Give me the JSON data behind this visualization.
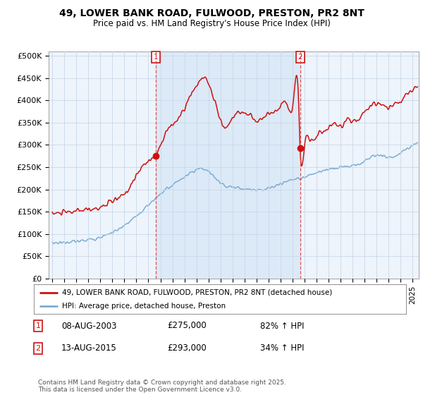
{
  "title": "49, LOWER BANK ROAD, FULWOOD, PRESTON, PR2 8NT",
  "subtitle": "Price paid vs. HM Land Registry's House Price Index (HPI)",
  "ylabel_ticks": [
    "£0",
    "£50K",
    "£100K",
    "£150K",
    "£200K",
    "£250K",
    "£300K",
    "£350K",
    "£400K",
    "£450K",
    "£500K"
  ],
  "ytick_vals": [
    0,
    50000,
    100000,
    150000,
    200000,
    250000,
    300000,
    350000,
    400000,
    450000,
    500000
  ],
  "ylim": [
    0,
    510000
  ],
  "xlim_start": 1994.7,
  "xlim_end": 2025.5,
  "red_line_color": "#cc1111",
  "blue_line_color": "#7aadd4",
  "sale1_x": 2003.6,
  "sale1_y": 275000,
  "sale2_x": 2015.62,
  "sale2_y": 293000,
  "sale1_label": "08-AUG-2003",
  "sale1_price": "£275,000",
  "sale1_hpi": "82% ↑ HPI",
  "sale2_label": "13-AUG-2015",
  "sale2_price": "£293,000",
  "sale2_hpi": "34% ↑ HPI",
  "legend_line1": "49, LOWER BANK ROAD, FULWOOD, PRESTON, PR2 8NT (detached house)",
  "legend_line2": "HPI: Average price, detached house, Preston",
  "footer": "Contains HM Land Registry data © Crown copyright and database right 2025.\nThis data is licensed under the Open Government Licence v3.0.",
  "background_color": "#ffffff",
  "grid_color": "#c8d8e8",
  "shade_color": "#ddeeff"
}
